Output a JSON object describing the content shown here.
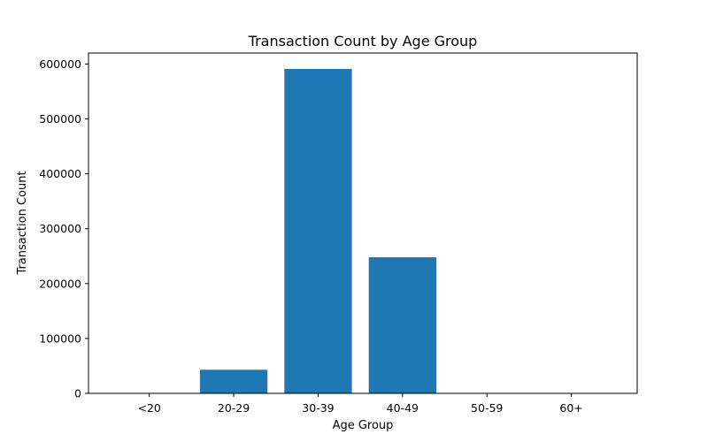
{
  "chart_data": {
    "type": "bar",
    "title": "Transaction Count by Age Group",
    "xlabel": "Age Group",
    "ylabel": "Transaction Count",
    "categories": [
      "<20",
      "20-29",
      "30-39",
      "40-49",
      "50-59",
      "60+"
    ],
    "values": [
      0,
      43000,
      591000,
      248000,
      0,
      0
    ],
    "ylim": [
      0,
      620000
    ],
    "yticks": [
      0,
      100000,
      200000,
      300000,
      400000,
      500000,
      600000
    ],
    "grid": false,
    "bar_color": "#1f77b4"
  }
}
